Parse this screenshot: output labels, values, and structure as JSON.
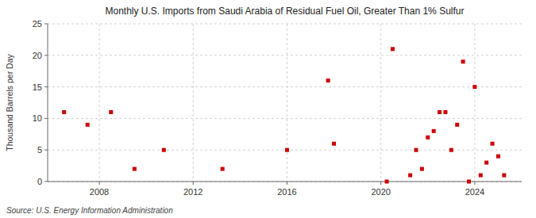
{
  "chart_data": {
    "type": "scatter",
    "title": "Monthly U.S. Imports from Saudi Arabia of Residual Fuel Oil, Greater Than 1% Sulfur",
    "ylabel": "Thousand Barrels per Day",
    "source": "Source: U.S. Energy Information Administration",
    "x": [
      2006.5,
      2007.5,
      2008.5,
      2009.5,
      2010.75,
      2013.25,
      2016.0,
      2017.75,
      2018.0,
      2020.25,
      2020.5,
      2021.25,
      2021.5,
      2021.75,
      2022.0,
      2022.25,
      2022.5,
      2022.75,
      2023.0,
      2023.25,
      2023.5,
      2023.75,
      2024.0,
      2024.25,
      2024.5,
      2024.75,
      2025.0,
      2025.25
    ],
    "values": [
      11,
      9,
      11,
      2,
      5,
      2,
      5,
      16,
      6,
      0,
      21,
      1,
      5,
      2,
      7,
      8,
      11,
      11,
      5,
      9,
      19,
      0,
      15,
      1,
      3,
      6,
      4,
      1
    ],
    "color": "#cc0000",
    "marker": "square",
    "xlim": [
      2005.8,
      2026.0
    ],
    "xticks": [
      2008,
      2012,
      2016,
      2020,
      2024
    ],
    "ylim": [
      0,
      25
    ],
    "yticks": [
      0,
      5,
      10,
      15,
      20,
      25
    ],
    "grid": true
  }
}
